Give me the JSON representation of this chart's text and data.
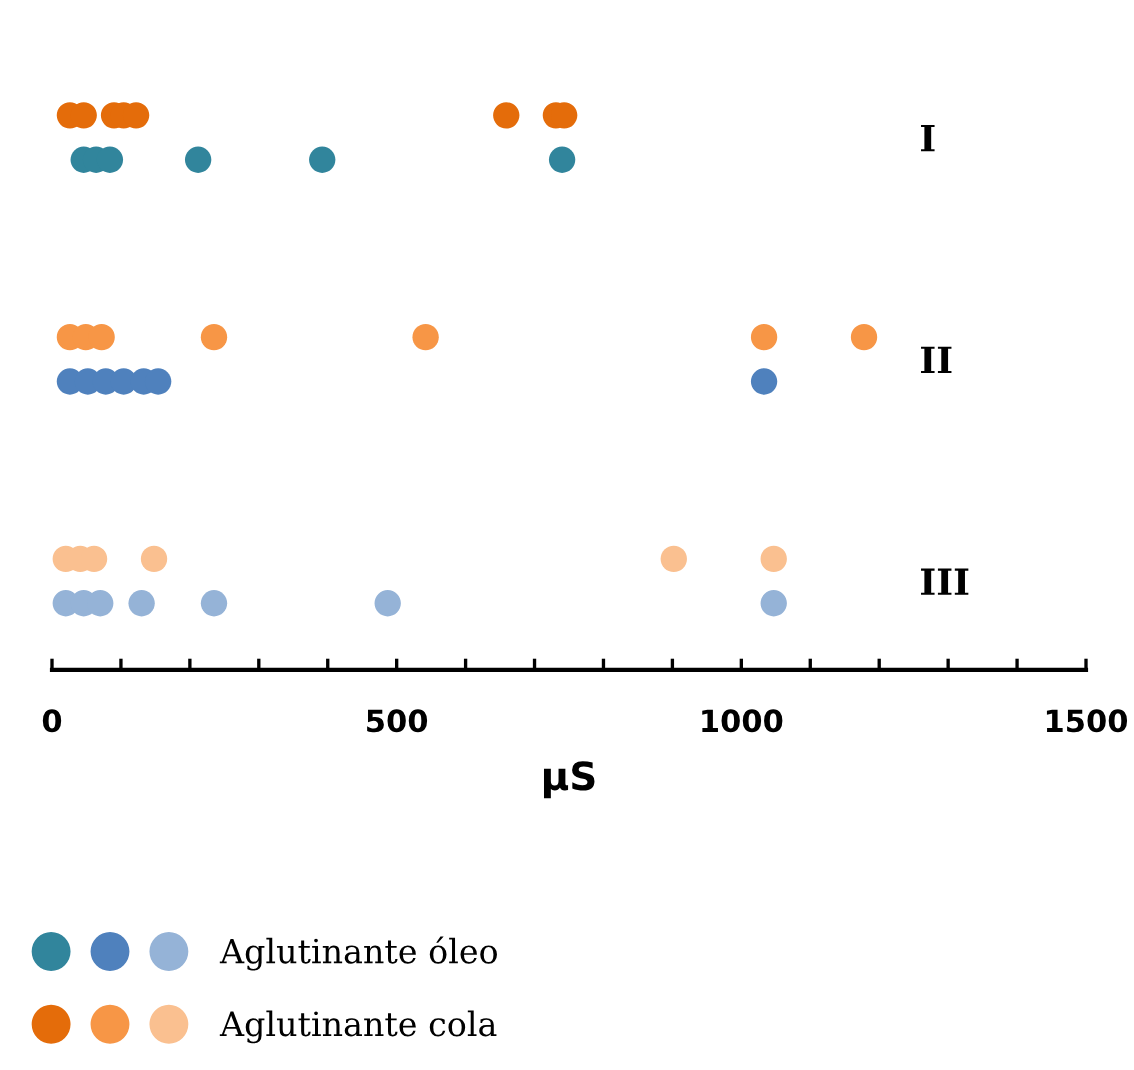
{
  "chart_data": {
    "type": "scatter",
    "orientation": "horizontal",
    "xlabel": "μS",
    "categories": [
      "I",
      "II",
      "III"
    ],
    "xlim": [
      0,
      1500
    ],
    "xticks": [
      0,
      {
        "value": 100,
        "label": null
      },
      {
        "value": 200,
        "label": null
      },
      {
        "value": 300,
        "label": null
      },
      {
        "value": 400,
        "label": null
      },
      500,
      {
        "value": 600,
        "label": null
      },
      {
        "value": 700,
        "label": null
      },
      {
        "value": 800,
        "label": null
      },
      {
        "value": 900,
        "label": null
      },
      1000,
      {
        "value": 1100,
        "label": null
      },
      {
        "value": 1200,
        "label": null
      },
      {
        "value": 1300,
        "label": null
      },
      {
        "value": 1400,
        "label": null
      },
      1500
    ],
    "marker": "circle",
    "legend": "bottom",
    "series": [
      {
        "color": "#e46c0a",
        "x": [
          "I",
          "I",
          "I",
          "I",
          "I",
          "I",
          "I",
          "I"
        ],
        "values": [
          26,
          46,
          90,
          104,
          122,
          659,
          731,
          743
        ]
      },
      {
        "color": "#31859c",
        "x": [
          "I",
          "I",
          "I",
          "I",
          "I",
          "I"
        ],
        "values": [
          46,
          64,
          84,
          212,
          392,
          740
        ]
      },
      {
        "color": "#f79646",
        "x": [
          "II",
          "II",
          "II",
          "II",
          "II",
          "II",
          "II"
        ],
        "values": [
          26,
          49,
          72,
          235,
          542,
          1033,
          1178
        ]
      },
      {
        "color": "#4f81bd",
        "x": [
          "II",
          "II",
          "II",
          "II",
          "II",
          "II",
          "II"
        ],
        "values": [
          26,
          52,
          78,
          104,
          133,
          154,
          1033
        ]
      },
      {
        "name": "Aglutinante cola",
        "color": "#fac090",
        "x": [
          "III",
          "III",
          "III",
          "III",
          "III",
          "III"
        ],
        "values": [
          20,
          41,
          61,
          148,
          902,
          1047
        ]
      },
      {
        "name": "Aglutinante óleo",
        "color": "#95b3d7",
        "x": [
          "III",
          "III",
          "III",
          "III",
          "III",
          "III",
          "III"
        ],
        "values": [
          20,
          46,
          70,
          130,
          235,
          487,
          1047
        ]
      }
    ]
  }
}
